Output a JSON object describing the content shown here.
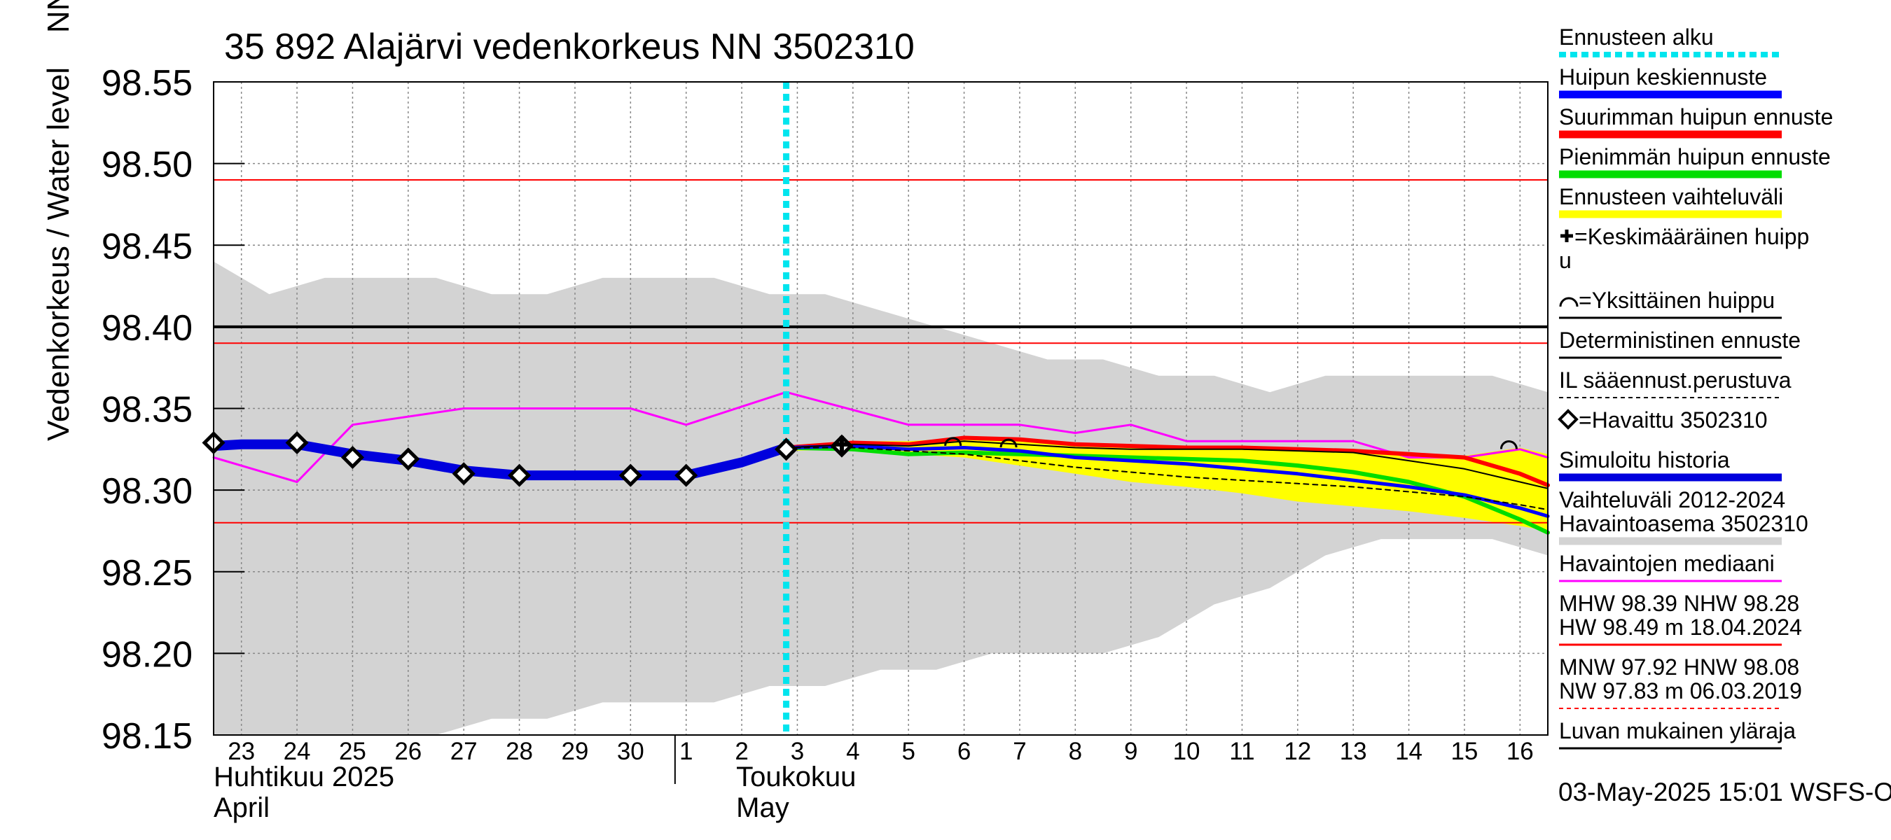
{
  "chart_data": {
    "type": "line",
    "title": "35 892 Alajärvi vedenkorkeus NN 3502310",
    "ylabel": "Vedenkorkeus / Water level    NN+m",
    "ylim": [
      98.15,
      98.55
    ],
    "yticks": [
      "98.55",
      "98.50",
      "98.45",
      "98.40",
      "98.35",
      "98.30",
      "98.25",
      "98.20",
      "98.15"
    ],
    "xlim": [
      22.5,
      46.5
    ],
    "xtick_values": [
      23,
      24,
      25,
      26,
      27,
      28,
      29,
      30,
      31,
      32,
      33,
      34,
      35,
      36,
      37,
      38,
      39,
      40,
      41,
      42,
      43,
      44,
      45,
      46
    ],
    "xtick_labels": [
      "23",
      "24",
      "25",
      "26",
      "27",
      "28",
      "29",
      "30",
      "1",
      "2",
      "3",
      "4",
      "5",
      "6",
      "7",
      "8",
      "9",
      "10",
      "11",
      "12",
      "13",
      "14",
      "15",
      "16"
    ],
    "month_labels": [
      {
        "fi": "Huhtikuu  2025",
        "en": "April",
        "x": 22.5
      },
      {
        "fi": "Toukokuu",
        "en": "May",
        "x": 31.9
      }
    ],
    "month_divider_x": 30.8,
    "forecast_start_x": 32.8,
    "history_band": {
      "x": [
        22.5,
        23.5,
        24.5,
        25.5,
        26.5,
        27.5,
        28.5,
        29.5,
        30.5,
        31.5,
        32.5,
        33.5,
        34.5,
        35.5,
        36.5,
        37.5,
        38.5,
        39.5,
        40.5,
        41.5,
        42.5,
        43.5,
        44.5,
        45.5,
        46.5
      ],
      "upper": [
        98.44,
        98.42,
        98.43,
        98.43,
        98.43,
        98.42,
        98.42,
        98.43,
        98.43,
        98.43,
        98.42,
        98.42,
        98.41,
        98.4,
        98.39,
        98.38,
        98.38,
        98.37,
        98.37,
        98.36,
        98.37,
        98.37,
        98.37,
        98.37,
        98.36
      ],
      "lower": [
        98.15,
        98.15,
        98.15,
        98.15,
        98.15,
        98.16,
        98.16,
        98.17,
        98.17,
        98.17,
        98.18,
        98.18,
        98.19,
        98.19,
        98.2,
        98.2,
        98.2,
        98.21,
        98.23,
        98.24,
        98.26,
        98.27,
        98.27,
        98.27,
        98.26
      ]
    },
    "forecast_band": {
      "x": [
        32.8,
        34,
        35,
        36,
        37,
        38,
        39,
        40,
        41,
        42,
        43,
        44,
        45,
        46,
        46.5
      ],
      "upper": [
        98.326,
        98.33,
        98.33,
        98.332,
        98.33,
        98.329,
        98.328,
        98.327,
        98.327,
        98.326,
        98.325,
        98.323,
        98.321,
        98.326,
        98.322
      ],
      "lower": [
        98.324,
        98.325,
        98.322,
        98.32,
        98.315,
        98.31,
        98.305,
        98.302,
        98.298,
        98.293,
        98.29,
        98.287,
        98.283,
        98.278,
        98.275
      ]
    },
    "reference_lines": [
      {
        "name": "HW",
        "value": 98.49,
        "color": "#ff0000",
        "width": 2
      },
      {
        "name": "MHW",
        "value": 98.39,
        "color": "#ff0000",
        "width": 2
      },
      {
        "name": "NHW",
        "value": 98.28,
        "color": "#ff0000",
        "width": 2
      },
      {
        "name": "Luvan mukainen yläraja",
        "value": 98.4,
        "color": "#000000",
        "width": 4
      }
    ],
    "series": [
      {
        "name": "Havaintojen mediaani",
        "color": "#ff00ff",
        "width": 3,
        "x": [
          22.5,
          24,
          25,
          27,
          30,
          31,
          32.8,
          35,
          37,
          38,
          39,
          40,
          41,
          42,
          43,
          44,
          45,
          46,
          46.5
        ],
        "y": [
          98.32,
          98.305,
          98.34,
          98.35,
          98.35,
          98.34,
          98.36,
          98.34,
          98.34,
          98.335,
          98.34,
          98.33,
          98.33,
          98.33,
          98.33,
          98.32,
          98.32,
          98.325,
          98.32
        ]
      },
      {
        "name": "Simuloitu historia",
        "color": "#0000dd",
        "width": 14,
        "x": [
          22.5,
          23,
          24,
          25,
          26,
          27,
          28,
          29,
          30,
          31,
          32,
          32.8
        ],
        "y": [
          98.327,
          98.328,
          98.328,
          98.322,
          98.318,
          98.312,
          98.309,
          98.309,
          98.309,
          98.309,
          98.317,
          98.326
        ]
      },
      {
        "name": "Pienimmän huipun ennuste",
        "color": "#00dd00",
        "width": 6,
        "x": [
          32.8,
          34,
          35,
          36,
          37,
          38,
          39,
          40,
          41,
          42,
          43,
          44,
          45,
          46,
          46.5
        ],
        "y": [
          98.326,
          98.325,
          98.322,
          98.323,
          98.322,
          98.321,
          98.32,
          98.319,
          98.318,
          98.315,
          98.311,
          98.305,
          98.296,
          98.282,
          98.274
        ]
      },
      {
        "name": "Suurimman huipun ennuste",
        "color": "#ff0000",
        "width": 6,
        "x": [
          32.8,
          34,
          35,
          36,
          37,
          38,
          39,
          40,
          41,
          42,
          43,
          44,
          45,
          46,
          46.5
        ],
        "y": [
          98.326,
          98.329,
          98.328,
          98.332,
          98.331,
          98.328,
          98.327,
          98.326,
          98.326,
          98.325,
          98.324,
          98.322,
          98.32,
          98.31,
          98.303
        ]
      },
      {
        "name": "Huipun keskiennuste",
        "color": "#0000ff",
        "width": 5,
        "x": [
          32.8,
          34,
          35,
          36,
          37,
          38,
          39,
          40,
          41,
          42,
          43,
          44,
          45,
          46,
          46.5
        ],
        "y": [
          98.326,
          98.327,
          98.325,
          98.326,
          98.324,
          98.32,
          98.318,
          98.316,
          98.313,
          98.31,
          98.306,
          98.302,
          98.297,
          98.289,
          98.284
        ]
      },
      {
        "name": "Deterministinen ennuste",
        "color": "#000000",
        "width": 2,
        "x": [
          32.8,
          34,
          35,
          36,
          37,
          38,
          39,
          40,
          41,
          42,
          43,
          44,
          45,
          46,
          46.5
        ],
        "y": [
          98.326,
          98.328,
          98.327,
          98.33,
          98.328,
          98.326,
          98.325,
          98.325,
          98.325,
          98.324,
          98.323,
          98.318,
          98.313,
          98.305,
          98.301
        ]
      },
      {
        "name": "IL sääennust.perustuva",
        "color": "#000000",
        "width": 2,
        "dash": "7,6",
        "x": [
          32.8,
          34,
          35,
          36,
          37,
          38,
          39,
          40,
          41,
          42,
          43,
          44,
          45,
          46,
          46.5
        ],
        "y": [
          98.326,
          98.326,
          98.324,
          98.322,
          98.318,
          98.314,
          98.311,
          98.308,
          98.306,
          98.304,
          98.302,
          98.299,
          98.296,
          98.291,
          98.288
        ]
      }
    ],
    "observed": {
      "name": "Havaittu 3502310",
      "x": [
        22.5,
        24,
        25,
        26,
        27,
        28,
        30,
        31,
        32.8,
        33.8
      ],
      "y": [
        98.329,
        98.329,
        98.32,
        98.319,
        98.31,
        98.309,
        98.309,
        98.309,
        98.325,
        98.327
      ]
    },
    "peak_markers": {
      "average": [
        {
          "x": 33.8,
          "y": 98.328
        }
      ],
      "single": [
        {
          "x": 35.8,
          "y": 98.328
        },
        {
          "x": 36.8,
          "y": 98.327
        },
        {
          "x": 45.8,
          "y": 98.326
        }
      ]
    },
    "legend": [
      {
        "label": "Ennusteen alku",
        "color": "#00e5ee",
        "style": "dotted"
      },
      {
        "label": "Huipun keskiennuste",
        "color": "#0000ff",
        "style": "thick"
      },
      {
        "label": "Suurimman huipun ennuste",
        "color": "#ff0000",
        "style": "thick"
      },
      {
        "label": "Pienimmän huipun ennuste",
        "color": "#00dd00",
        "style": "thick"
      },
      {
        "label": "Ennusteen vaihteluväli",
        "color": "#ffff00",
        "style": "thick"
      },
      {
        "label": "=Keskimääräinen huipp",
        "label2": "u",
        "color": "#000000",
        "style": "none",
        "marker": "plus"
      },
      {
        "label": "=Yksittäinen huippu",
        "color": "#000000",
        "style": "thin",
        "marker": "arc"
      },
      {
        "label": "Deterministinen ennuste",
        "color": "#000000",
        "style": "thin"
      },
      {
        "label": "IL sääennust.perustuva",
        "color": "#000000",
        "style": "dashed"
      },
      {
        "label": "=Havaittu 3502310",
        "color": "#000000",
        "style": "none",
        "marker": "diamond"
      },
      {
        "label": "Simuloitu historia",
        "color": "#0000dd",
        "style": "thick"
      },
      {
        "label": "Vaihteluväli 2012-2024",
        "label2": " Havaintoasema 3502310",
        "color": "#d3d3d3",
        "style": "thick"
      },
      {
        "label": "Havaintojen mediaani",
        "color": "#ff00ff",
        "style": "thin"
      },
      {
        "label": "MHW  98.39 NHW  98.28",
        "label2": "HW  98.49 m 18.04.2024",
        "color": "#ff0000",
        "style": "thin"
      },
      {
        "label": "MNW  97.92 HNW  98.08",
        "label2": "NW  97.83 m 06.03.2019",
        "color": "#ff0000",
        "style": "dashed"
      },
      {
        "label": "Luvan mukainen yläraja",
        "color": "#000000",
        "style": "thin"
      }
    ],
    "footer": "03-May-2025 15:01 WSFS-O"
  }
}
